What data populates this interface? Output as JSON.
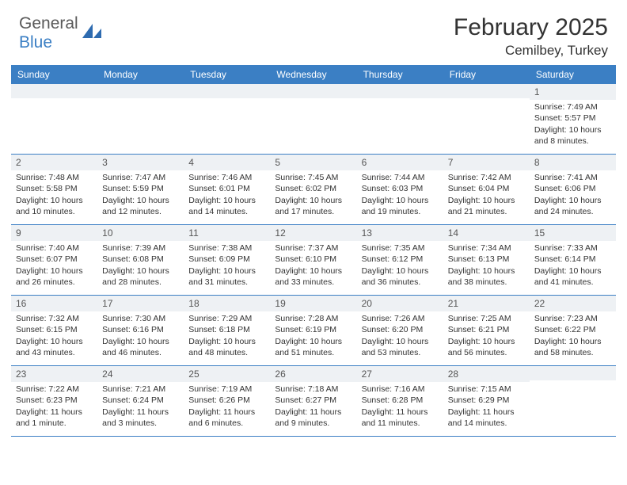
{
  "brand": {
    "name1": "General",
    "name2": "Blue"
  },
  "title": "February 2025",
  "location": "Cemilbey, Turkey",
  "colors": {
    "header_bg": "#3b7fc4",
    "header_text": "#ffffff",
    "daynum_bg": "#eef1f4",
    "row_border": "#3b7fc4",
    "text": "#333333"
  },
  "day_headers": [
    "Sunday",
    "Monday",
    "Tuesday",
    "Wednesday",
    "Thursday",
    "Friday",
    "Saturday"
  ],
  "weeks": [
    [
      {
        "n": "",
        "sr": "",
        "ss": "",
        "dl": ""
      },
      {
        "n": "",
        "sr": "",
        "ss": "",
        "dl": ""
      },
      {
        "n": "",
        "sr": "",
        "ss": "",
        "dl": ""
      },
      {
        "n": "",
        "sr": "",
        "ss": "",
        "dl": ""
      },
      {
        "n": "",
        "sr": "",
        "ss": "",
        "dl": ""
      },
      {
        "n": "",
        "sr": "",
        "ss": "",
        "dl": ""
      },
      {
        "n": "1",
        "sr": "Sunrise: 7:49 AM",
        "ss": "Sunset: 5:57 PM",
        "dl": "Daylight: 10 hours and 8 minutes."
      }
    ],
    [
      {
        "n": "2",
        "sr": "Sunrise: 7:48 AM",
        "ss": "Sunset: 5:58 PM",
        "dl": "Daylight: 10 hours and 10 minutes."
      },
      {
        "n": "3",
        "sr": "Sunrise: 7:47 AM",
        "ss": "Sunset: 5:59 PM",
        "dl": "Daylight: 10 hours and 12 minutes."
      },
      {
        "n": "4",
        "sr": "Sunrise: 7:46 AM",
        "ss": "Sunset: 6:01 PM",
        "dl": "Daylight: 10 hours and 14 minutes."
      },
      {
        "n": "5",
        "sr": "Sunrise: 7:45 AM",
        "ss": "Sunset: 6:02 PM",
        "dl": "Daylight: 10 hours and 17 minutes."
      },
      {
        "n": "6",
        "sr": "Sunrise: 7:44 AM",
        "ss": "Sunset: 6:03 PM",
        "dl": "Daylight: 10 hours and 19 minutes."
      },
      {
        "n": "7",
        "sr": "Sunrise: 7:42 AM",
        "ss": "Sunset: 6:04 PM",
        "dl": "Daylight: 10 hours and 21 minutes."
      },
      {
        "n": "8",
        "sr": "Sunrise: 7:41 AM",
        "ss": "Sunset: 6:06 PM",
        "dl": "Daylight: 10 hours and 24 minutes."
      }
    ],
    [
      {
        "n": "9",
        "sr": "Sunrise: 7:40 AM",
        "ss": "Sunset: 6:07 PM",
        "dl": "Daylight: 10 hours and 26 minutes."
      },
      {
        "n": "10",
        "sr": "Sunrise: 7:39 AM",
        "ss": "Sunset: 6:08 PM",
        "dl": "Daylight: 10 hours and 28 minutes."
      },
      {
        "n": "11",
        "sr": "Sunrise: 7:38 AM",
        "ss": "Sunset: 6:09 PM",
        "dl": "Daylight: 10 hours and 31 minutes."
      },
      {
        "n": "12",
        "sr": "Sunrise: 7:37 AM",
        "ss": "Sunset: 6:10 PM",
        "dl": "Daylight: 10 hours and 33 minutes."
      },
      {
        "n": "13",
        "sr": "Sunrise: 7:35 AM",
        "ss": "Sunset: 6:12 PM",
        "dl": "Daylight: 10 hours and 36 minutes."
      },
      {
        "n": "14",
        "sr": "Sunrise: 7:34 AM",
        "ss": "Sunset: 6:13 PM",
        "dl": "Daylight: 10 hours and 38 minutes."
      },
      {
        "n": "15",
        "sr": "Sunrise: 7:33 AM",
        "ss": "Sunset: 6:14 PM",
        "dl": "Daylight: 10 hours and 41 minutes."
      }
    ],
    [
      {
        "n": "16",
        "sr": "Sunrise: 7:32 AM",
        "ss": "Sunset: 6:15 PM",
        "dl": "Daylight: 10 hours and 43 minutes."
      },
      {
        "n": "17",
        "sr": "Sunrise: 7:30 AM",
        "ss": "Sunset: 6:16 PM",
        "dl": "Daylight: 10 hours and 46 minutes."
      },
      {
        "n": "18",
        "sr": "Sunrise: 7:29 AM",
        "ss": "Sunset: 6:18 PM",
        "dl": "Daylight: 10 hours and 48 minutes."
      },
      {
        "n": "19",
        "sr": "Sunrise: 7:28 AM",
        "ss": "Sunset: 6:19 PM",
        "dl": "Daylight: 10 hours and 51 minutes."
      },
      {
        "n": "20",
        "sr": "Sunrise: 7:26 AM",
        "ss": "Sunset: 6:20 PM",
        "dl": "Daylight: 10 hours and 53 minutes."
      },
      {
        "n": "21",
        "sr": "Sunrise: 7:25 AM",
        "ss": "Sunset: 6:21 PM",
        "dl": "Daylight: 10 hours and 56 minutes."
      },
      {
        "n": "22",
        "sr": "Sunrise: 7:23 AM",
        "ss": "Sunset: 6:22 PM",
        "dl": "Daylight: 10 hours and 58 minutes."
      }
    ],
    [
      {
        "n": "23",
        "sr": "Sunrise: 7:22 AM",
        "ss": "Sunset: 6:23 PM",
        "dl": "Daylight: 11 hours and 1 minute."
      },
      {
        "n": "24",
        "sr": "Sunrise: 7:21 AM",
        "ss": "Sunset: 6:24 PM",
        "dl": "Daylight: 11 hours and 3 minutes."
      },
      {
        "n": "25",
        "sr": "Sunrise: 7:19 AM",
        "ss": "Sunset: 6:26 PM",
        "dl": "Daylight: 11 hours and 6 minutes."
      },
      {
        "n": "26",
        "sr": "Sunrise: 7:18 AM",
        "ss": "Sunset: 6:27 PM",
        "dl": "Daylight: 11 hours and 9 minutes."
      },
      {
        "n": "27",
        "sr": "Sunrise: 7:16 AM",
        "ss": "Sunset: 6:28 PM",
        "dl": "Daylight: 11 hours and 11 minutes."
      },
      {
        "n": "28",
        "sr": "Sunrise: 7:15 AM",
        "ss": "Sunset: 6:29 PM",
        "dl": "Daylight: 11 hours and 14 minutes."
      },
      {
        "n": "",
        "sr": "",
        "ss": "",
        "dl": ""
      }
    ]
  ]
}
